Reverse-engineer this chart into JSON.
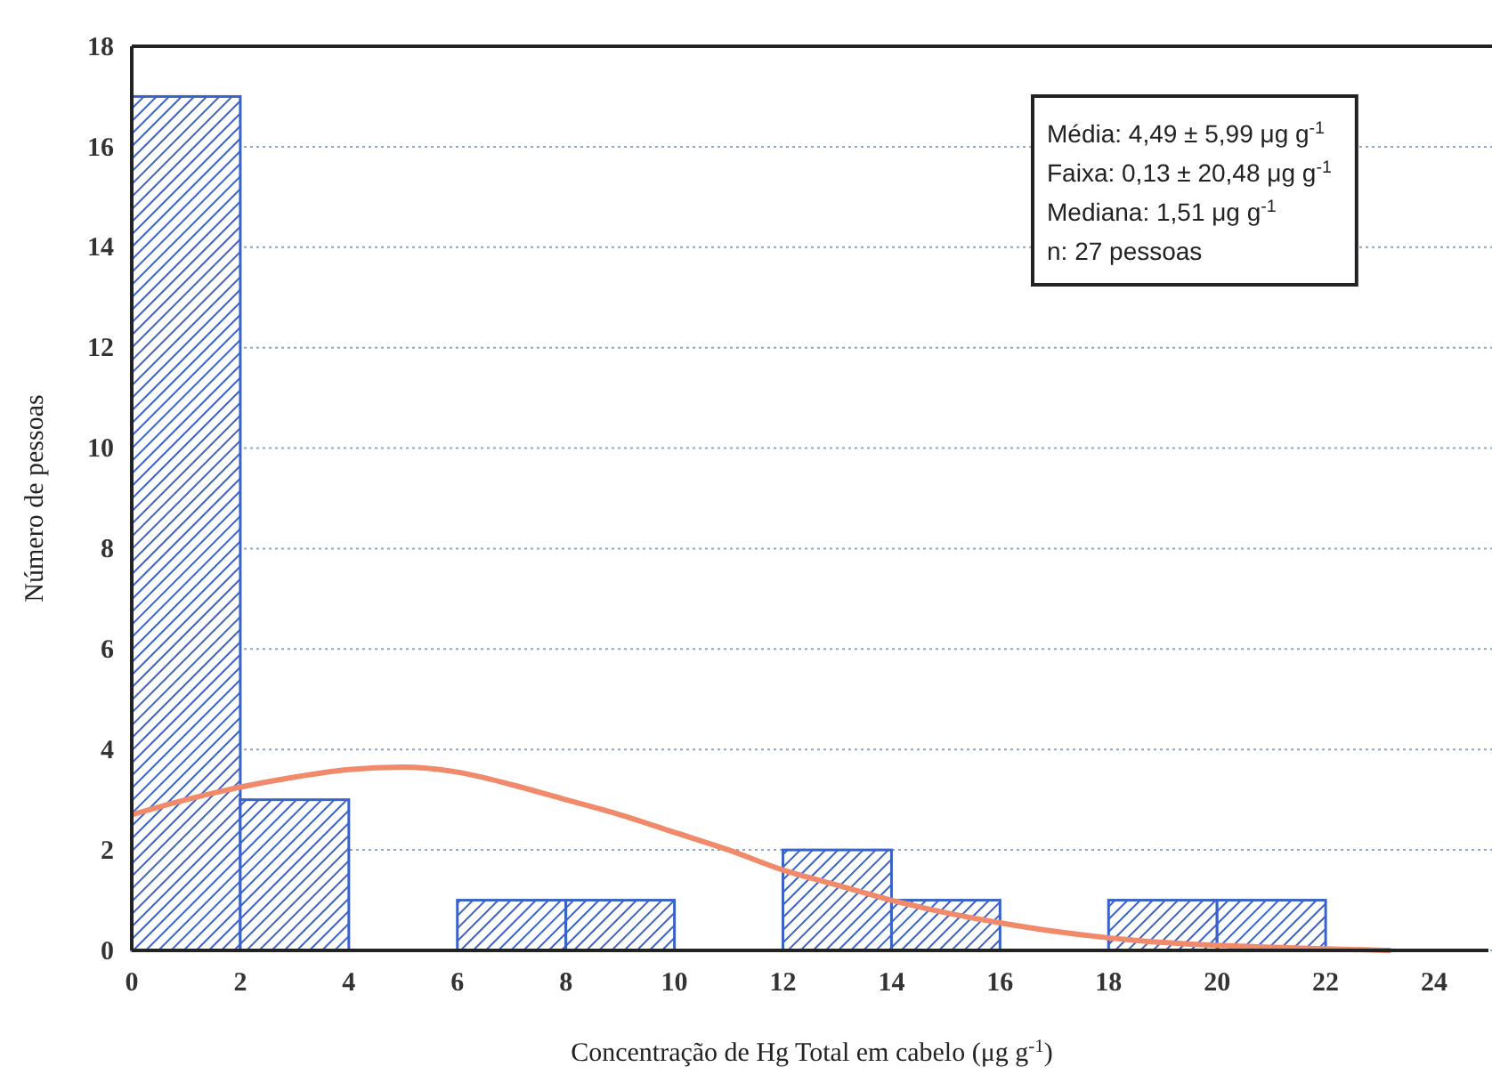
{
  "chart_data": {
    "type": "histogram",
    "xlabel": "Concentração de Hg Total em cabelo (μg g$^{-1}$)",
    "ylabel": "Número de pessoas",
    "bins": [
      0,
      2,
      4,
      6,
      8,
      10,
      12,
      14,
      16,
      18,
      20,
      22
    ],
    "values": [
      17,
      3,
      0,
      1,
      1,
      0,
      2,
      1,
      0,
      1,
      1
    ],
    "color": "#3a62c8",
    "series": [
      {
        "type": "line",
        "color": "#f08a6a",
        "x": [
          0,
          1,
          2,
          3,
          4,
          5,
          6,
          7,
          8,
          9,
          10,
          11,
          12,
          13,
          14,
          15,
          16,
          17,
          18,
          19,
          20,
          21,
          22,
          23.2
        ],
        "values": [
          2.7,
          3.0,
          3.25,
          3.45,
          3.6,
          3.65,
          3.55,
          3.3,
          3.0,
          2.7,
          2.35,
          2.0,
          1.6,
          1.3,
          1.0,
          0.75,
          0.55,
          0.38,
          0.25,
          0.16,
          0.1,
          0.06,
          0.03,
          0
        ]
      }
    ],
    "xlim": [
      0,
      25
    ],
    "xticks": [
      0,
      2,
      4,
      6,
      8,
      10,
      12,
      14,
      16,
      18,
      20,
      22,
      24
    ],
    "ylim": [
      0,
      18
    ],
    "yticks": [
      0,
      2,
      4,
      6,
      8,
      10,
      12,
      14,
      16,
      18
    ],
    "grid": "y",
    "annotations": [
      "Média: 4,49 ± 5,99 μg g$^{-1}$",
      "Faixa: 0,13 ± 20,48 μg g$^{-1}$",
      "Mediana: 1,51 μg g$^{-1}$",
      "n: 27 pessoas"
    ]
  }
}
